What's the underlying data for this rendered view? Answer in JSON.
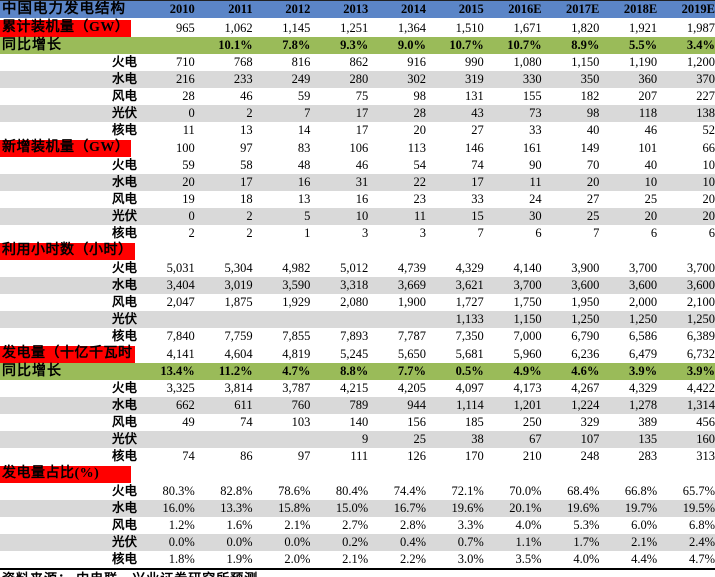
{
  "colors": {
    "header_blue": "#5B85C7",
    "section_label_red": "#FF0000",
    "growth_green": "#9ABB59",
    "stripe_gray": "#D9D9D9"
  },
  "source_note": "资料来源： 中电联、兴业证券研究所预测",
  "table": {
    "corner_label": "中国电力发电结构",
    "years": [
      "2010",
      "2011",
      "2012",
      "2013",
      "2014",
      "2015",
      "2016E",
      "2017E",
      "2018E",
      "2019E"
    ],
    "rows": [
      {
        "label": "累计装机量（GW）",
        "type": "section",
        "values": [
          "965",
          "1,062",
          "1,145",
          "1,251",
          "1,364",
          "1,510",
          "1,671",
          "1,820",
          "1,921",
          "1,987"
        ]
      },
      {
        "label": "同比增长",
        "type": "growth",
        "values": [
          "",
          "10.1%",
          "7.8%",
          "9.3%",
          "9.0%",
          "10.7%",
          "10.7%",
          "8.9%",
          "5.5%",
          "3.4%"
        ]
      },
      {
        "label": "火电",
        "type": "sub",
        "values": [
          "710",
          "768",
          "816",
          "862",
          "916",
          "990",
          "1,080",
          "1,150",
          "1,190",
          "1,200"
        ]
      },
      {
        "label": "水电",
        "type": "sub-alt",
        "values": [
          "216",
          "233",
          "249",
          "280",
          "302",
          "319",
          "330",
          "350",
          "360",
          "370"
        ]
      },
      {
        "label": "风电",
        "type": "sub",
        "values": [
          "28",
          "46",
          "59",
          "75",
          "98",
          "131",
          "155",
          "182",
          "207",
          "227"
        ]
      },
      {
        "label": "光伏",
        "type": "sub-alt",
        "values": [
          "0",
          "2",
          "7",
          "17",
          "28",
          "43",
          "73",
          "98",
          "118",
          "138"
        ]
      },
      {
        "label": "核电",
        "type": "sub",
        "values": [
          "11",
          "13",
          "14",
          "17",
          "20",
          "27",
          "33",
          "40",
          "46",
          "52"
        ]
      },
      {
        "label": "新增装机量（GW）",
        "type": "section",
        "values": [
          "100",
          "97",
          "83",
          "106",
          "113",
          "146",
          "161",
          "149",
          "101",
          "66"
        ]
      },
      {
        "label": "火电",
        "type": "sub",
        "values": [
          "59",
          "58",
          "48",
          "46",
          "54",
          "74",
          "90",
          "70",
          "40",
          "10"
        ]
      },
      {
        "label": "水电",
        "type": "sub-alt",
        "values": [
          "20",
          "17",
          "16",
          "31",
          "22",
          "17",
          "11",
          "20",
          "10",
          "10"
        ]
      },
      {
        "label": "风电",
        "type": "sub",
        "values": [
          "19",
          "18",
          "13",
          "16",
          "23",
          "33",
          "24",
          "27",
          "25",
          "20"
        ]
      },
      {
        "label": "光伏",
        "type": "sub-alt",
        "values": [
          "0",
          "2",
          "5",
          "10",
          "11",
          "15",
          "30",
          "25",
          "20",
          "20"
        ]
      },
      {
        "label": "核电",
        "type": "sub",
        "values": [
          "2",
          "2",
          "1",
          "3",
          "3",
          "7",
          "6",
          "7",
          "6",
          "6"
        ]
      },
      {
        "label": "利用小时数（小时）",
        "type": "section",
        "values": [
          "",
          "",
          "",
          "",
          "",
          "",
          "",
          "",
          "",
          ""
        ]
      },
      {
        "label": "火电",
        "type": "sub",
        "values": [
          "5,031",
          "5,304",
          "4,982",
          "5,012",
          "4,739",
          "4,329",
          "4,140",
          "3,900",
          "3,700",
          "3,700"
        ]
      },
      {
        "label": "水电",
        "type": "sub-alt",
        "values": [
          "3,404",
          "3,019",
          "3,590",
          "3,318",
          "3,669",
          "3,621",
          "3,700",
          "3,600",
          "3,600",
          "3,600"
        ]
      },
      {
        "label": "风电",
        "type": "sub",
        "values": [
          "2,047",
          "1,875",
          "1,929",
          "2,080",
          "1,900",
          "1,727",
          "1,750",
          "1,950",
          "2,000",
          "2,100"
        ]
      },
      {
        "label": "光伏",
        "type": "sub-alt",
        "values": [
          "",
          "",
          "",
          "",
          "",
          "1,133",
          "1,150",
          "1,250",
          "1,250",
          "1,250"
        ]
      },
      {
        "label": "核电",
        "type": "sub",
        "values": [
          "7,840",
          "7,759",
          "7,855",
          "7,893",
          "7,787",
          "7,350",
          "7,000",
          "6,790",
          "6,586",
          "6,389"
        ]
      },
      {
        "label": "发电量（十亿千瓦时",
        "type": "section",
        "values": [
          "4,141",
          "4,604",
          "4,819",
          "5,245",
          "5,650",
          "5,681",
          "5,960",
          "6,236",
          "6,479",
          "6,732"
        ]
      },
      {
        "label": "同比增长",
        "type": "growth",
        "values": [
          "13.4%",
          "11.2%",
          "4.7%",
          "8.8%",
          "7.7%",
          "0.5%",
          "4.9%",
          "4.6%",
          "3.9%",
          "3.9%"
        ]
      },
      {
        "label": "火电",
        "type": "sub",
        "values": [
          "3,325",
          "3,814",
          "3,787",
          "4,215",
          "4,205",
          "4,097",
          "4,173",
          "4,267",
          "4,329",
          "4,422"
        ]
      },
      {
        "label": "水电",
        "type": "sub-alt",
        "values": [
          "662",
          "611",
          "760",
          "789",
          "944",
          "1,114",
          "1,201",
          "1,224",
          "1,278",
          "1,314"
        ]
      },
      {
        "label": "风电",
        "type": "sub",
        "values": [
          "49",
          "74",
          "103",
          "140",
          "156",
          "185",
          "250",
          "329",
          "389",
          "456"
        ]
      },
      {
        "label": "光伏",
        "type": "sub-alt",
        "values": [
          "",
          "",
          "",
          "9",
          "25",
          "38",
          "67",
          "107",
          "135",
          "160"
        ]
      },
      {
        "label": "核电",
        "type": "sub",
        "values": [
          "74",
          "86",
          "97",
          "111",
          "126",
          "170",
          "210",
          "248",
          "283",
          "313"
        ]
      },
      {
        "label": "发电量占比(%)",
        "type": "section",
        "values": [
          "",
          "",
          "",
          "",
          "",
          "",
          "",
          "",
          "",
          ""
        ]
      },
      {
        "label": "火电",
        "type": "sub",
        "values": [
          "80.3%",
          "82.8%",
          "78.6%",
          "80.4%",
          "74.4%",
          "72.1%",
          "70.0%",
          "68.4%",
          "66.8%",
          "65.7%"
        ]
      },
      {
        "label": "水电",
        "type": "sub-alt",
        "values": [
          "16.0%",
          "13.3%",
          "15.8%",
          "15.0%",
          "16.7%",
          "19.6%",
          "20.1%",
          "19.6%",
          "19.7%",
          "19.5%"
        ]
      },
      {
        "label": "风电",
        "type": "sub",
        "values": [
          "1.2%",
          "1.6%",
          "2.1%",
          "2.7%",
          "2.8%",
          "3.3%",
          "4.0%",
          "5.3%",
          "6.0%",
          "6.8%"
        ]
      },
      {
        "label": "光伏",
        "type": "sub-alt",
        "values": [
          "0.0%",
          "0.0%",
          "0.0%",
          "0.2%",
          "0.4%",
          "0.7%",
          "1.1%",
          "1.7%",
          "2.1%",
          "2.4%"
        ]
      },
      {
        "label": "核电",
        "type": "sub",
        "values": [
          "1.8%",
          "1.9%",
          "2.0%",
          "2.1%",
          "2.2%",
          "3.0%",
          "3.5%",
          "4.0%",
          "4.4%",
          "4.7%"
        ]
      }
    ]
  }
}
